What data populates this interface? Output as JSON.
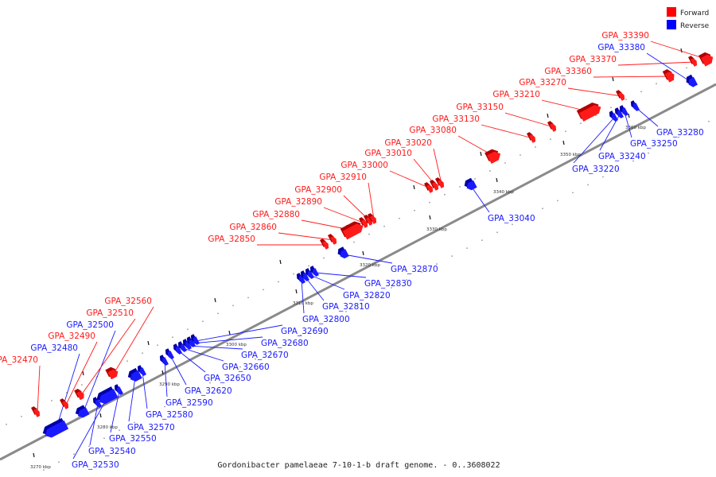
{
  "caption": "Gordonibacter pamelaeae 7-10-1-b draft genome. - 0..3608022",
  "legend": [
    {
      "label": "Forward",
      "color": "#ff0000"
    },
    {
      "label": "Reverse",
      "color": "#0000ff"
    }
  ],
  "colors": {
    "forward": "#ff1a1a",
    "reverse": "#1a1aff",
    "axis": "#8a8a8a"
  },
  "scale_ticks": [
    "3270 kbp",
    "3280 kbp",
    "3290 kbp",
    "3300 kbp",
    "3310 kbp",
    "3320 kbp",
    "3330 kbp",
    "3340 kbp",
    "3350 kbp",
    "3360 kbp"
  ],
  "genes": [
    {
      "name": "GPA_32470",
      "strand": "forward"
    },
    {
      "name": "GPA_32480",
      "strand": "reverse"
    },
    {
      "name": "GPA_32490",
      "strand": "forward"
    },
    {
      "name": "GPA_32500",
      "strand": "reverse"
    },
    {
      "name": "GPA_32510",
      "strand": "forward"
    },
    {
      "name": "GPA_32560",
      "strand": "forward"
    },
    {
      "name": "GPA_32530",
      "strand": "reverse"
    },
    {
      "name": "GPA_32540",
      "strand": "reverse"
    },
    {
      "name": "GPA_32550",
      "strand": "reverse"
    },
    {
      "name": "GPA_32570",
      "strand": "reverse"
    },
    {
      "name": "GPA_32580",
      "strand": "reverse"
    },
    {
      "name": "GPA_32590",
      "strand": "reverse"
    },
    {
      "name": "GPA_32620",
      "strand": "reverse"
    },
    {
      "name": "GPA_32650",
      "strand": "reverse"
    },
    {
      "name": "GPA_32660",
      "strand": "reverse"
    },
    {
      "name": "GPA_32670",
      "strand": "reverse"
    },
    {
      "name": "GPA_32680",
      "strand": "reverse"
    },
    {
      "name": "GPA_32690",
      "strand": "reverse"
    },
    {
      "name": "GPA_32800",
      "strand": "reverse"
    },
    {
      "name": "GPA_32810",
      "strand": "reverse"
    },
    {
      "name": "GPA_32820",
      "strand": "reverse"
    },
    {
      "name": "GPA_32830",
      "strand": "reverse"
    },
    {
      "name": "GPA_32870",
      "strand": "reverse"
    },
    {
      "name": "GPA_32850",
      "strand": "forward"
    },
    {
      "name": "GPA_32860",
      "strand": "forward"
    },
    {
      "name": "GPA_32880",
      "strand": "forward"
    },
    {
      "name": "GPA_32890",
      "strand": "forward"
    },
    {
      "name": "GPA_32900",
      "strand": "forward"
    },
    {
      "name": "GPA_32910",
      "strand": "forward"
    },
    {
      "name": "GPA_33000",
      "strand": "forward"
    },
    {
      "name": "GPA_33010",
      "strand": "forward"
    },
    {
      "name": "GPA_33020",
      "strand": "forward"
    },
    {
      "name": "GPA_33080",
      "strand": "forward"
    },
    {
      "name": "GPA_33040",
      "strand": "reverse"
    },
    {
      "name": "GPA_33130",
      "strand": "forward"
    },
    {
      "name": "GPA_33150",
      "strand": "forward"
    },
    {
      "name": "GPA_33210",
      "strand": "forward"
    },
    {
      "name": "GPA_33270",
      "strand": "forward"
    },
    {
      "name": "GPA_33360",
      "strand": "forward"
    },
    {
      "name": "GPA_33370",
      "strand": "forward"
    },
    {
      "name": "GPA_33380",
      "strand": "reverse"
    },
    {
      "name": "GPA_33390",
      "strand": "forward"
    },
    {
      "name": "GPA_33220",
      "strand": "reverse"
    },
    {
      "name": "GPA_33240",
      "strand": "reverse"
    },
    {
      "name": "GPA_33250",
      "strand": "reverse"
    },
    {
      "name": "GPA_33280",
      "strand": "reverse"
    }
  ]
}
